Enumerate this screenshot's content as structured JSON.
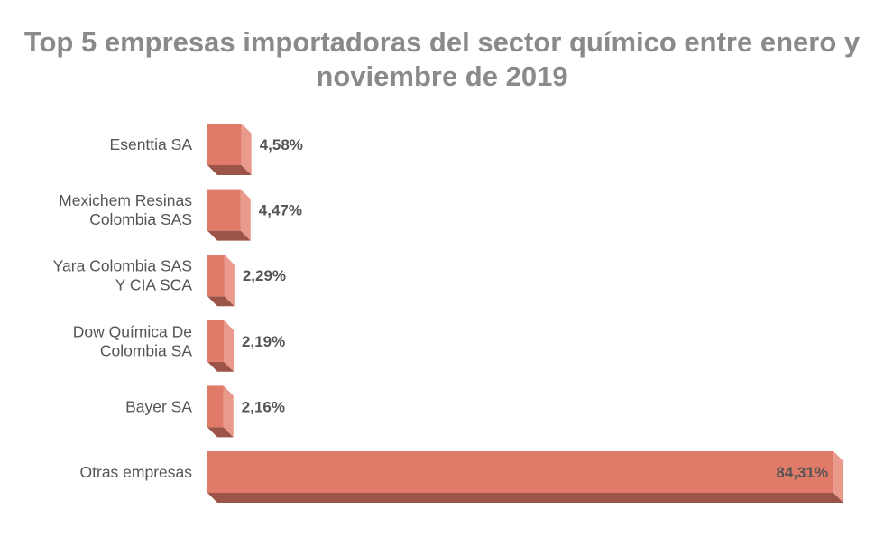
{
  "chart_data": {
    "type": "bar",
    "orientation": "horizontal",
    "title": "Top 5 empresas importadoras del sector químico entre enero y noviembre de 2019",
    "categories": [
      [
        "Esenttia SA"
      ],
      [
        "Mexichem Resinas",
        "Colombia SAS"
      ],
      [
        "Yara Colombia SAS",
        "Y CIA SCA"
      ],
      [
        "Dow Química De",
        "Colombia SA"
      ],
      [
        "Bayer SA"
      ],
      [
        "Otras empresas"
      ]
    ],
    "values": [
      4.58,
      4.47,
      2.29,
      2.19,
      2.16,
      84.31
    ],
    "value_labels": [
      "4,58%",
      "4,47%",
      "2,29%",
      "2,19%",
      "2,16%",
      "84,31%"
    ],
    "xlim": [
      0,
      86
    ],
    "grid": false,
    "legend": "none",
    "bar_color": "#e07b6a",
    "bar_side_color": "#ea9a8b",
    "bar_bottom_color": "#9b5447",
    "title_color": "#8a8a8a",
    "label_color": "#555555"
  }
}
